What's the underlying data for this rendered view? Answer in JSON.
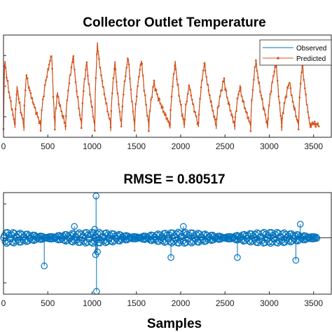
{
  "chart_data": [
    {
      "type": "line",
      "title": "Collector Outlet Temperature",
      "xlabel": "",
      "ylabel": "",
      "xlim": [
        0,
        3700
      ],
      "x_ticks": [
        0,
        500,
        1000,
        1500,
        2000,
        2500,
        3000,
        3500
      ],
      "x_tick_labels": [
        "0",
        "500",
        "1000",
        "1500",
        "2000",
        "2500",
        "3000",
        "3500"
      ],
      "ylim": [
        0,
        100
      ],
      "legend_placement": "top-right",
      "legend": [
        "Observed",
        "Predicted"
      ],
      "colors": {
        "observed": "#0072BD",
        "predicted": "#D95319"
      },
      "series": [
        {
          "name": "Observed",
          "peaks": [
            {
              "start": 0,
              "end": 130,
              "peak_at": 15,
              "peak": 78
            },
            {
              "start": 130,
              "end": 230,
              "peak_at": 155,
              "peak": 50
            },
            {
              "start": 230,
              "end": 420,
              "peak_at": 260,
              "peak": 62
            },
            {
              "start": 420,
              "end": 580,
              "peak_at": 545,
              "peak": 82
            },
            {
              "start": 580,
              "end": 700,
              "peak_at": 610,
              "peak": 44
            },
            {
              "start": 700,
              "end": 880,
              "peak_at": 790,
              "peak": 80
            },
            {
              "start": 880,
              "end": 1030,
              "peak_at": 940,
              "peak": 74
            },
            {
              "start": 1030,
              "end": 1210,
              "peak_at": 1060,
              "peak": 92
            },
            {
              "start": 1210,
              "end": 1330,
              "peak_at": 1260,
              "peak": 74
            },
            {
              "start": 1330,
              "end": 1480,
              "peak_at": 1410,
              "peak": 80
            },
            {
              "start": 1480,
              "end": 1640,
              "peak_at": 1560,
              "peak": 77
            },
            {
              "start": 1640,
              "end": 1880,
              "peak_at": 1700,
              "peak": 54
            },
            {
              "start": 1880,
              "end": 2040,
              "peak_at": 1940,
              "peak": 74
            },
            {
              "start": 2040,
              "end": 2200,
              "peak_at": 2100,
              "peak": 52
            },
            {
              "start": 2200,
              "end": 2400,
              "peak_at": 2270,
              "peak": 74
            },
            {
              "start": 2400,
              "end": 2610,
              "peak_at": 2490,
              "peak": 57
            },
            {
              "start": 2610,
              "end": 2790,
              "peak_at": 2670,
              "peak": 50
            },
            {
              "start": 2790,
              "end": 2980,
              "peak_at": 2850,
              "peak": 76
            },
            {
              "start": 2980,
              "end": 3140,
              "peak_at": 3080,
              "peak": 74
            },
            {
              "start": 3140,
              "end": 3330,
              "peak_at": 3230,
              "peak": 55
            },
            {
              "start": 3330,
              "end": 3460,
              "peak_at": 3375,
              "peak": 74
            },
            {
              "start": 3460,
              "end": 3560,
              "peak_at": 3485,
              "peak": 14
            }
          ],
          "baseline": 8
        },
        {
          "name": "Predicted",
          "same_as": "Observed"
        }
      ]
    },
    {
      "type": "scatter",
      "title": "RMSE = 0.80517",
      "xlabel": "Samples",
      "ylabel": "",
      "xlim": [
        0,
        3700
      ],
      "x_ticks": [
        0,
        500,
        1000,
        1500,
        2000,
        2500,
        3000,
        3500
      ],
      "x_tick_labels": [
        "0",
        "500",
        "1000",
        "1500",
        "2000",
        "2500",
        "3000",
        "3500"
      ],
      "ylim": [
        -10,
        8
      ],
      "baseline": 0,
      "series_color": "#0072BD",
      "spikes": [
        {
          "x": 1045,
          "y": 7.4
        },
        {
          "x": 1050,
          "y": -9.5
        },
        {
          "x": 460,
          "y": -5.0
        },
        {
          "x": 1040,
          "y": -3.0
        },
        {
          "x": 1060,
          "y": -2.5
        },
        {
          "x": 1890,
          "y": -3.5
        },
        {
          "x": 2640,
          "y": -3.5
        },
        {
          "x": 3300,
          "y": -4.0
        },
        {
          "x": 3350,
          "y": 2.4
        },
        {
          "x": 800,
          "y": 2.0
        },
        {
          "x": 2030,
          "y": 2.0
        },
        {
          "x": 1030,
          "y": 1.5
        }
      ]
    }
  ]
}
